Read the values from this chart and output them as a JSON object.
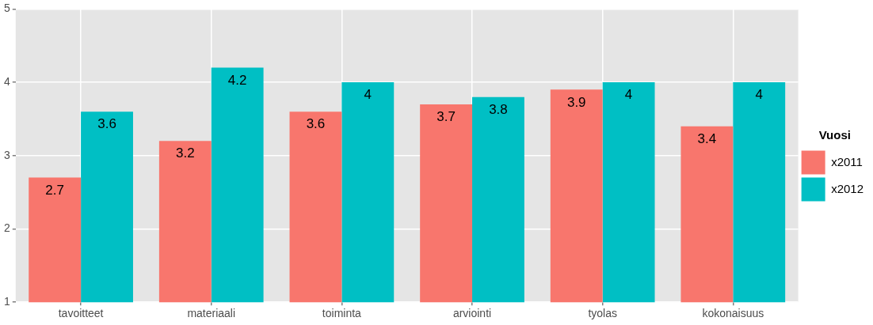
{
  "chart_data": {
    "type": "bar",
    "categories": [
      "tavoitteet",
      "materiaali",
      "toiminta",
      "arviointi",
      "tyolas",
      "kokonaisuus"
    ],
    "series": [
      {
        "name": "x2011",
        "color": "#f8766d",
        "values": [
          2.7,
          3.2,
          3.6,
          3.7,
          3.9,
          3.4
        ]
      },
      {
        "name": "x2012",
        "color": "#00bfc4",
        "values": [
          3.6,
          4.2,
          4,
          3.8,
          4,
          4
        ]
      }
    ],
    "ylim": [
      1,
      5
    ],
    "yticks": [
      1,
      2,
      3,
      4,
      5
    ],
    "grid": true,
    "legend": "right",
    "legend_title": "Vuosi",
    "data_labels": true
  }
}
